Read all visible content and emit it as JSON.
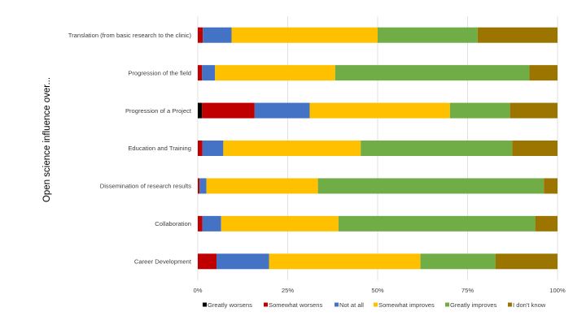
{
  "chart_data": {
    "type": "bar",
    "orientation": "horizontal",
    "stacked": true,
    "percent_stacked": true,
    "ylabel": "Open science influence over...",
    "xlabel": "",
    "categories": [
      "Translation (from basic research to the clinic)",
      "Progression of the field",
      "Progression of a Project",
      "Education and Training",
      "Dissemination of research results",
      "Collaboration",
      "Career Development"
    ],
    "series": [
      {
        "name": "Greatly worsens",
        "color": "#000000",
        "values": [
          0.0,
          0.0,
          1.2,
          0.0,
          0.0,
          0.0,
          0.0
        ]
      },
      {
        "name": "Somewhat worsens",
        "color": "#c00000",
        "values": [
          1.4,
          1.2,
          14.6,
          1.3,
          0.5,
          1.3,
          5.2
        ]
      },
      {
        "name": "Not at all",
        "color": "#4472c4",
        "values": [
          8.0,
          3.6,
          15.3,
          5.8,
          1.9,
          5.2,
          14.6
        ]
      },
      {
        "name": "Somewhat improves",
        "color": "#ffc000",
        "values": [
          40.6,
          33.4,
          39.0,
          38.2,
          31.0,
          32.6,
          42.1
        ]
      },
      {
        "name": "Greatly improves",
        "color": "#70ad47",
        "values": [
          27.8,
          54.0,
          16.7,
          42.1,
          62.8,
          54.7,
          20.9
        ]
      },
      {
        "name": "I don't know",
        "color": "#9c7500",
        "values": [
          22.2,
          7.8,
          13.2,
          12.6,
          3.8,
          6.2,
          17.2
        ]
      }
    ],
    "xlim": [
      0,
      100
    ],
    "x_ticks": [
      "0%",
      "25%",
      "50%",
      "75%",
      "100%"
    ],
    "grid": "vertical",
    "legend": "bottom"
  }
}
